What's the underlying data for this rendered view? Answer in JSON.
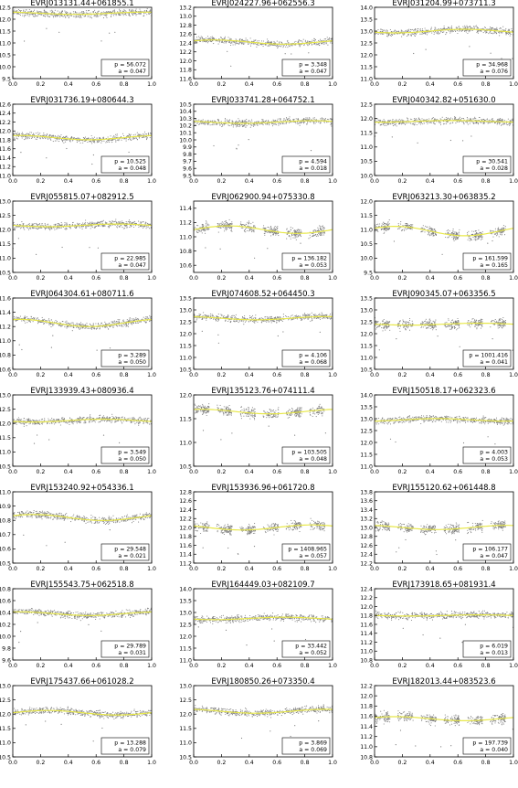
{
  "chart_data": [
    {
      "type": "scatter",
      "title": "EVRJ013131.44+061855.1",
      "ylim": [
        12.5,
        9.5
      ],
      "yticks": [
        "12.5",
        "12.0",
        "11.5",
        "11.0",
        "10.5",
        "10.0",
        "9.5"
      ],
      "xlim": [
        0,
        1
      ],
      "xticks": [
        "0.0",
        "0.2",
        "0.4",
        "0.6",
        "0.8",
        "1.0"
      ],
      "mean": 12.25,
      "period_label": "p = 56.072",
      "amp_label": "a = 0.047",
      "period": 56.072,
      "amplitude": 0.047,
      "phase": 0.3
    },
    {
      "type": "scatter",
      "title": "EVRJ024227.96+062556.3",
      "ylim": [
        13.2,
        11.6
      ],
      "yticks": [
        "13.2",
        "13.0",
        "12.8",
        "12.6",
        "12.4",
        "12.2",
        "12.0",
        "11.8",
        "11.6"
      ],
      "xlim": [
        0,
        1
      ],
      "xticks": [
        "0.0",
        "0.2",
        "0.4",
        "0.6",
        "0.8",
        "1.0"
      ],
      "mean": 12.42,
      "period_label": "p = 3.348",
      "amp_label": "a = 0.047",
      "period": 3.348,
      "amplitude": 0.047,
      "phase": 0.1
    },
    {
      "type": "scatter",
      "title": "EVRJ031204.99+073711.3",
      "ylim": [
        14.0,
        11.0
      ],
      "yticks": [
        "14.0",
        "13.5",
        "13.0",
        "12.5",
        "12.0",
        "11.5",
        "11.0"
      ],
      "xlim": [
        0,
        1
      ],
      "xticks": [
        "0.0",
        "0.2",
        "0.4",
        "0.6",
        "0.8",
        "1.0"
      ],
      "mean": 13.0,
      "period_label": "p = 34.968",
      "amp_label": "a = 0.076",
      "period": 34.968,
      "amplitude": 0.076,
      "phase": 0.6
    },
    {
      "type": "scatter",
      "title": "EVRJ031736.19+080644.3",
      "ylim": [
        12.6,
        11.0
      ],
      "yticks": [
        "12.6",
        "12.4",
        "12.2",
        "12.0",
        "11.8",
        "11.6",
        "11.4",
        "11.2",
        "11.0"
      ],
      "xlim": [
        0,
        1
      ],
      "xticks": [
        "0.0",
        "0.2",
        "0.4",
        "0.6",
        "0.8",
        "1.0"
      ],
      "mean": 11.85,
      "period_label": "p = 10.525",
      "amp_label": "a = 0.048",
      "period": 10.525,
      "amplitude": 0.048,
      "phase": 0.2
    },
    {
      "type": "scatter",
      "title": "EVRJ033741.28+064752.1",
      "ylim": [
        10.5,
        9.5
      ],
      "yticks": [
        "10.5",
        "10.4",
        "10.3",
        "10.2",
        "10.1",
        "10.0",
        "9.9",
        "9.8",
        "9.7",
        "9.6",
        "9.5"
      ],
      "xlim": [
        0,
        1
      ],
      "xticks": [
        "0.0",
        "0.2",
        "0.4",
        "0.6",
        "0.8",
        "1.0"
      ],
      "mean": 10.25,
      "period_label": "p = 4.594",
      "amp_label": "a = 0.018",
      "period": 4.594,
      "amplitude": 0.018,
      "phase": 0.4
    },
    {
      "type": "scatter",
      "title": "EVRJ040342.82+051630.0",
      "ylim": [
        12.5,
        10.0
      ],
      "yticks": [
        "12.5",
        "12.0",
        "11.5",
        "11.0",
        "10.5",
        "10.0"
      ],
      "xlim": [
        0,
        1
      ],
      "xticks": [
        "0.0",
        "0.2",
        "0.4",
        "0.6",
        "0.8",
        "1.0"
      ],
      "mean": 11.9,
      "period_label": "p = 30.541",
      "amp_label": "a = 0.028",
      "period": 30.541,
      "amplitude": 0.028,
      "phase": 0.7
    },
    {
      "type": "scatter",
      "title": "EVRJ055815.07+082912.5",
      "ylim": [
        13.0,
        10.5
      ],
      "yticks": [
        "13.0",
        "12.5",
        "12.0",
        "11.5",
        "11.0",
        "10.5"
      ],
      "xlim": [
        0,
        1
      ],
      "xticks": [
        "0.0",
        "0.2",
        "0.4",
        "0.6",
        "0.8",
        "1.0"
      ],
      "mean": 12.15,
      "period_label": "p = 22.985",
      "amp_label": "a = 0.047",
      "period": 22.985,
      "amplitude": 0.047,
      "phase": 0.5
    },
    {
      "type": "scatter",
      "title": "EVRJ062900.94+075330.8",
      "ylim": [
        11.5,
        10.5
      ],
      "yticks": [
        "11.4",
        "11.2",
        "11.0",
        "10.8",
        "10.6"
      ],
      "xlim": [
        0,
        1
      ],
      "xticks": [
        "0.0",
        "0.2",
        "0.4",
        "0.6",
        "0.8",
        "1.0"
      ],
      "mean": 11.1,
      "period_label": "p = 136.182",
      "amp_label": "a = 0.053",
      "period": 136.182,
      "amplitude": 0.053,
      "phase": 0.0,
      "gaps": true
    },
    {
      "type": "scatter",
      "title": "EVRJ063213.30+063835.2",
      "ylim": [
        12.0,
        9.5
      ],
      "yticks": [
        "12.0",
        "11.5",
        "11.0",
        "10.5",
        "10.0",
        "9.5"
      ],
      "xlim": [
        0,
        1
      ],
      "xticks": [
        "0.0",
        "0.2",
        "0.4",
        "0.6",
        "0.8",
        "1.0"
      ],
      "mean": 10.95,
      "period_label": "p = 161.599",
      "amp_label": "a = 0.165",
      "period": 161.599,
      "amplitude": 0.165,
      "phase": 0.1,
      "gaps": true
    },
    {
      "type": "scatter",
      "title": "EVRJ064304.61+080711.6",
      "ylim": [
        11.6,
        10.6
      ],
      "yticks": [
        "11.6",
        "11.4",
        "11.2",
        "11.0",
        "10.8",
        "10.6"
      ],
      "xlim": [
        0,
        1
      ],
      "xticks": [
        "0.0",
        "0.2",
        "0.4",
        "0.6",
        "0.8",
        "1.0"
      ],
      "mean": 11.25,
      "period_label": "p = 3.289",
      "amp_label": "a = 0.050",
      "period": 3.289,
      "amplitude": 0.05,
      "phase": 0.2
    },
    {
      "type": "scatter",
      "title": "EVRJ074608.52+064450.3",
      "ylim": [
        13.5,
        10.5
      ],
      "yticks": [
        "13.5",
        "13.0",
        "12.5",
        "12.0",
        "11.5",
        "11.0",
        "10.5"
      ],
      "xlim": [
        0,
        1
      ],
      "xticks": [
        "0.0",
        "0.2",
        "0.4",
        "0.6",
        "0.8",
        "1.0"
      ],
      "mean": 12.65,
      "period_label": "p = 4.106",
      "amp_label": "a = 0.068",
      "period": 4.106,
      "amplitude": 0.068,
      "phase": 0.3
    },
    {
      "type": "scatter",
      "title": "EVRJ090345.07+063356.5",
      "ylim": [
        13.5,
        10.5
      ],
      "yticks": [
        "13.5",
        "13.0",
        "12.5",
        "12.0",
        "11.5",
        "11.0",
        "10.5"
      ],
      "xlim": [
        0,
        1
      ],
      "xticks": [
        "0.0",
        "0.2",
        "0.4",
        "0.6",
        "0.8",
        "1.0"
      ],
      "mean": 12.4,
      "period_label": "p = 1001.416",
      "amp_label": "a = 0.041",
      "period": 1001.416,
      "amplitude": 0.041,
      "phase": 0.5,
      "gaps": true
    },
    {
      "type": "scatter",
      "title": "EVRJ133939.43+080936.4",
      "ylim": [
        13.0,
        10.5
      ],
      "yticks": [
        "13.0",
        "12.5",
        "12.0",
        "11.5",
        "11.0",
        "10.5"
      ],
      "xlim": [
        0,
        1
      ],
      "xticks": [
        "0.0",
        "0.2",
        "0.4",
        "0.6",
        "0.8",
        "1.0"
      ],
      "mean": 12.1,
      "period_label": "p = 3.549",
      "amp_label": "a = 0.050",
      "period": 3.549,
      "amplitude": 0.05,
      "phase": 0.6
    },
    {
      "type": "scatter",
      "title": "EVRJ135123.76+074111.4",
      "ylim": [
        12.0,
        10.5
      ],
      "yticks": [
        "12.0",
        "11.5",
        "11.0",
        "10.5"
      ],
      "xlim": [
        0,
        1
      ],
      "xticks": [
        "0.0",
        "0.2",
        "0.4",
        "0.6",
        "0.8",
        "1.0"
      ],
      "mean": 11.65,
      "period_label": "p = 103.505",
      "amp_label": "a = 0.048",
      "period": 103.505,
      "amplitude": 0.048,
      "phase": 0.2,
      "gaps": true
    },
    {
      "type": "scatter",
      "title": "EVRJ150518.17+062323.6",
      "ylim": [
        14.0,
        11.0
      ],
      "yticks": [
        "14.0",
        "13.5",
        "13.0",
        "12.5",
        "12.0",
        "11.5",
        "11.0"
      ],
      "xlim": [
        0,
        1
      ],
      "xticks": [
        "0.0",
        "0.2",
        "0.4",
        "0.6",
        "0.8",
        "1.0"
      ],
      "mean": 12.95,
      "period_label": "p = 4.003",
      "amp_label": "a = 0.053",
      "period": 4.003,
      "amplitude": 0.053,
      "phase": 0.8
    },
    {
      "type": "scatter",
      "title": "EVRJ153240.92+054336.1",
      "ylim": [
        11.0,
        10.5
      ],
      "yticks": [
        "11.0",
        "10.9",
        "10.8",
        "10.7",
        "10.6",
        "10.5"
      ],
      "xlim": [
        0,
        1
      ],
      "xticks": [
        "0.0",
        "0.2",
        "0.4",
        "0.6",
        "0.8",
        "1.0"
      ],
      "mean": 10.82,
      "period_label": "p = 29.548",
      "amp_label": "a = 0.021",
      "period": 29.548,
      "amplitude": 0.021,
      "phase": 0.1
    },
    {
      "type": "scatter",
      "title": "EVRJ153936.96+061720.8",
      "ylim": [
        12.8,
        11.2
      ],
      "yticks": [
        "12.8",
        "12.6",
        "12.4",
        "12.2",
        "12.0",
        "11.8",
        "11.6",
        "11.4",
        "11.2"
      ],
      "xlim": [
        0,
        1
      ],
      "xticks": [
        "0.0",
        "0.2",
        "0.4",
        "0.6",
        "0.8",
        "1.0"
      ],
      "mean": 12.0,
      "period_label": "p = 1408.965",
      "amp_label": "a = 0.057",
      "period": 1408.965,
      "amplitude": 0.057,
      "phase": 0.4,
      "gaps": true
    },
    {
      "type": "scatter",
      "title": "EVRJ155120.62+061448.8",
      "ylim": [
        13.8,
        12.2
      ],
      "yticks": [
        "13.8",
        "13.6",
        "13.4",
        "13.2",
        "13.0",
        "12.8",
        "12.6",
        "12.4",
        "12.2"
      ],
      "xlim": [
        0,
        1
      ],
      "xticks": [
        "0.0",
        "0.2",
        "0.4",
        "0.6",
        "0.8",
        "1.0"
      ],
      "mean": 13.0,
      "period_label": "p = 106.177",
      "amp_label": "a = 0.047",
      "period": 106.177,
      "amplitude": 0.047,
      "phase": 0.3,
      "gaps": true
    },
    {
      "type": "scatter",
      "title": "EVRJ155543.75+062518.8",
      "ylim": [
        10.8,
        9.6
      ],
      "yticks": [
        "10.8",
        "10.6",
        "10.4",
        "10.2",
        "10.0",
        "9.8",
        "9.6"
      ],
      "xlim": [
        0,
        1
      ],
      "xticks": [
        "0.0",
        "0.2",
        "0.4",
        "0.6",
        "0.8",
        "1.0"
      ],
      "mean": 10.38,
      "period_label": "p = 29.789",
      "amp_label": "a = 0.031",
      "period": 29.789,
      "amplitude": 0.031,
      "phase": 0.2
    },
    {
      "type": "scatter",
      "title": "EVRJ164449.03+082109.7",
      "ylim": [
        14.0,
        11.0
      ],
      "yticks": [
        "14.0",
        "13.5",
        "13.0",
        "12.5",
        "12.0",
        "11.5",
        "11.0"
      ],
      "xlim": [
        0,
        1
      ],
      "xticks": [
        "0.0",
        "0.2",
        "0.4",
        "0.6",
        "0.8",
        "1.0"
      ],
      "mean": 12.75,
      "period_label": "p = 33.442",
      "amp_label": "a = 0.052",
      "period": 33.442,
      "amplitude": 0.052,
      "phase": 0.6
    },
    {
      "type": "scatter",
      "title": "EVRJ173918.65+081931.4",
      "ylim": [
        12.4,
        10.8
      ],
      "yticks": [
        "12.4",
        "12.2",
        "12.0",
        "11.8",
        "11.6",
        "11.4",
        "11.2",
        "11.0",
        "10.8"
      ],
      "xlim": [
        0,
        1
      ],
      "xticks": [
        "0.0",
        "0.2",
        "0.4",
        "0.6",
        "0.8",
        "1.0"
      ],
      "mean": 11.8,
      "period_label": "p = 6.019",
      "amp_label": "a = 0.013",
      "period": 6.019,
      "amplitude": 0.013,
      "phase": 0.5
    },
    {
      "type": "scatter",
      "title": "EVRJ175437.66+061028.2",
      "ylim": [
        13.0,
        10.5
      ],
      "yticks": [
        "13.0",
        "12.5",
        "12.0",
        "11.5",
        "11.0",
        "10.5"
      ],
      "xlim": [
        0,
        1
      ],
      "xticks": [
        "0.0",
        "0.2",
        "0.4",
        "0.6",
        "0.8",
        "1.0"
      ],
      "mean": 12.05,
      "period_label": "p = 13.288",
      "amp_label": "a = 0.079",
      "period": 13.288,
      "amplitude": 0.079,
      "phase": 0.0
    },
    {
      "type": "scatter",
      "title": "EVRJ180850.26+073350.4",
      "ylim": [
        13.0,
        10.5
      ],
      "yticks": [
        "13.0",
        "12.5",
        "12.0",
        "11.5",
        "11.0",
        "10.5"
      ],
      "xlim": [
        0,
        1
      ],
      "xticks": [
        "0.0",
        "0.2",
        "0.4",
        "0.6",
        "0.8",
        "1.0"
      ],
      "mean": 12.1,
      "period_label": "p = 3.869",
      "amp_label": "a = 0.069",
      "period": 3.869,
      "amplitude": 0.069,
      "phase": 0.3
    },
    {
      "type": "scatter",
      "title": "EVRJ182013.44+083523.6",
      "ylim": [
        12.2,
        10.8
      ],
      "yticks": [
        "12.2",
        "12.0",
        "11.8",
        "11.6",
        "11.4",
        "11.2",
        "11.0",
        "10.8"
      ],
      "xlim": [
        0,
        1
      ],
      "xticks": [
        "0.0",
        "0.2",
        "0.4",
        "0.6",
        "0.8",
        "1.0"
      ],
      "mean": 11.55,
      "period_label": "p = 197.739",
      "amp_label": "a = 0.040",
      "period": 197.739,
      "amplitude": 0.04,
      "phase": 0.1,
      "gaps": true
    }
  ],
  "colors": {
    "points": "#7f7f7f",
    "fit": "#e8e84a",
    "axis": "#000000",
    "background": "#ffffff"
  }
}
